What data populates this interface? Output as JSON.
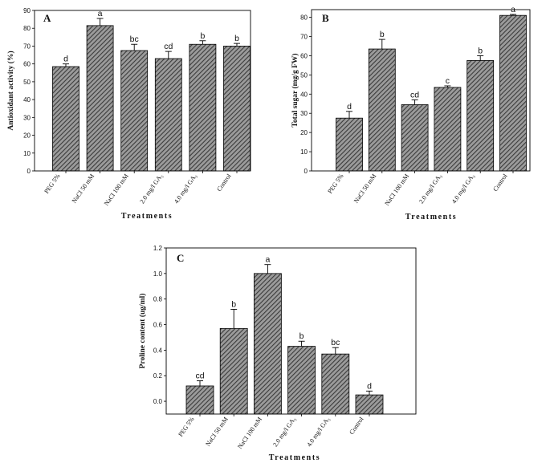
{
  "colors": {
    "bar_fill": "#9b9b9b",
    "bar_hatch": "#3a3a3a",
    "axis": "#000000"
  },
  "chart_data": [
    {
      "panel_label": "A",
      "type": "bar",
      "categories": [
        "PEG 5%",
        "NaCl 50 mM",
        "NaCl 100 mM",
        "2.0 mg/l GA₃",
        "4.0 mg/l GA₃",
        "Control"
      ],
      "values": [
        58.5,
        81.5,
        67.5,
        63.0,
        71.0,
        70.0
      ],
      "errors": [
        1.5,
        4.0,
        3.5,
        4.0,
        2.0,
        1.5
      ],
      "significance_letters": [
        "d",
        "a",
        "bc",
        "cd",
        "b",
        "b"
      ],
      "xlabel": "Treatments",
      "ylabel": "Antioxidant activity (%)",
      "ylim": [
        0,
        90
      ],
      "yticks": [
        0,
        10,
        20,
        30,
        40,
        50,
        60,
        70,
        80,
        90
      ],
      "ytick_labels": [
        "0",
        "10",
        "20",
        "30",
        "40",
        "50",
        "60",
        "70",
        "80",
        "90"
      ],
      "grid": false
    },
    {
      "panel_label": "B",
      "type": "bar",
      "categories": [
        "PEG 5%",
        "NaCl 50 mM",
        "NaCl 100 mM",
        "2.0 mg/l GA₃",
        "4.0 mg/l GA₃",
        "Control"
      ],
      "values": [
        27.5,
        63.5,
        34.5,
        43.5,
        57.5,
        81.0
      ],
      "errors": [
        3.5,
        5.0,
        2.5,
        0.8,
        2.5,
        0.5
      ],
      "significance_letters": [
        "d",
        "b",
        "cd",
        "c",
        "b",
        "a"
      ],
      "xlabel": "Treatments",
      "ylabel": "Total sugar (mg/g FW)",
      "ylim": [
        0,
        84
      ],
      "yticks": [
        0,
        10,
        20,
        30,
        40,
        50,
        60,
        70,
        80
      ],
      "ytick_labels": [
        "0",
        "10",
        "20",
        "30",
        "40",
        "50",
        "60",
        "70",
        "80"
      ],
      "grid": false
    },
    {
      "panel_label": "C",
      "type": "bar",
      "categories": [
        "PEG 5%",
        "NaCl 50 mM",
        "NaCl 100 mM",
        "2.0 mg/l GA₃",
        "4.0 mg/l GA₃",
        "Control"
      ],
      "values": [
        0.12,
        0.57,
        1.0,
        0.43,
        0.37,
        0.05
      ],
      "errors": [
        0.04,
        0.15,
        0.07,
        0.04,
        0.05,
        0.03
      ],
      "significance_letters": [
        "cd",
        "b",
        "a",
        "b",
        "bc",
        "d"
      ],
      "xlabel": "Treatments",
      "ylabel": "Proline content (ug/ml)",
      "ylim": [
        -0.1,
        1.2
      ],
      "yticks": [
        0,
        0.2,
        0.4,
        0.6,
        0.8,
        1.0,
        1.2
      ],
      "ytick_labels": [
        "0.0",
        "0.2",
        "0.4",
        "0.6",
        "0.8",
        "1.0",
        "1.2"
      ],
      "grid": false
    }
  ]
}
